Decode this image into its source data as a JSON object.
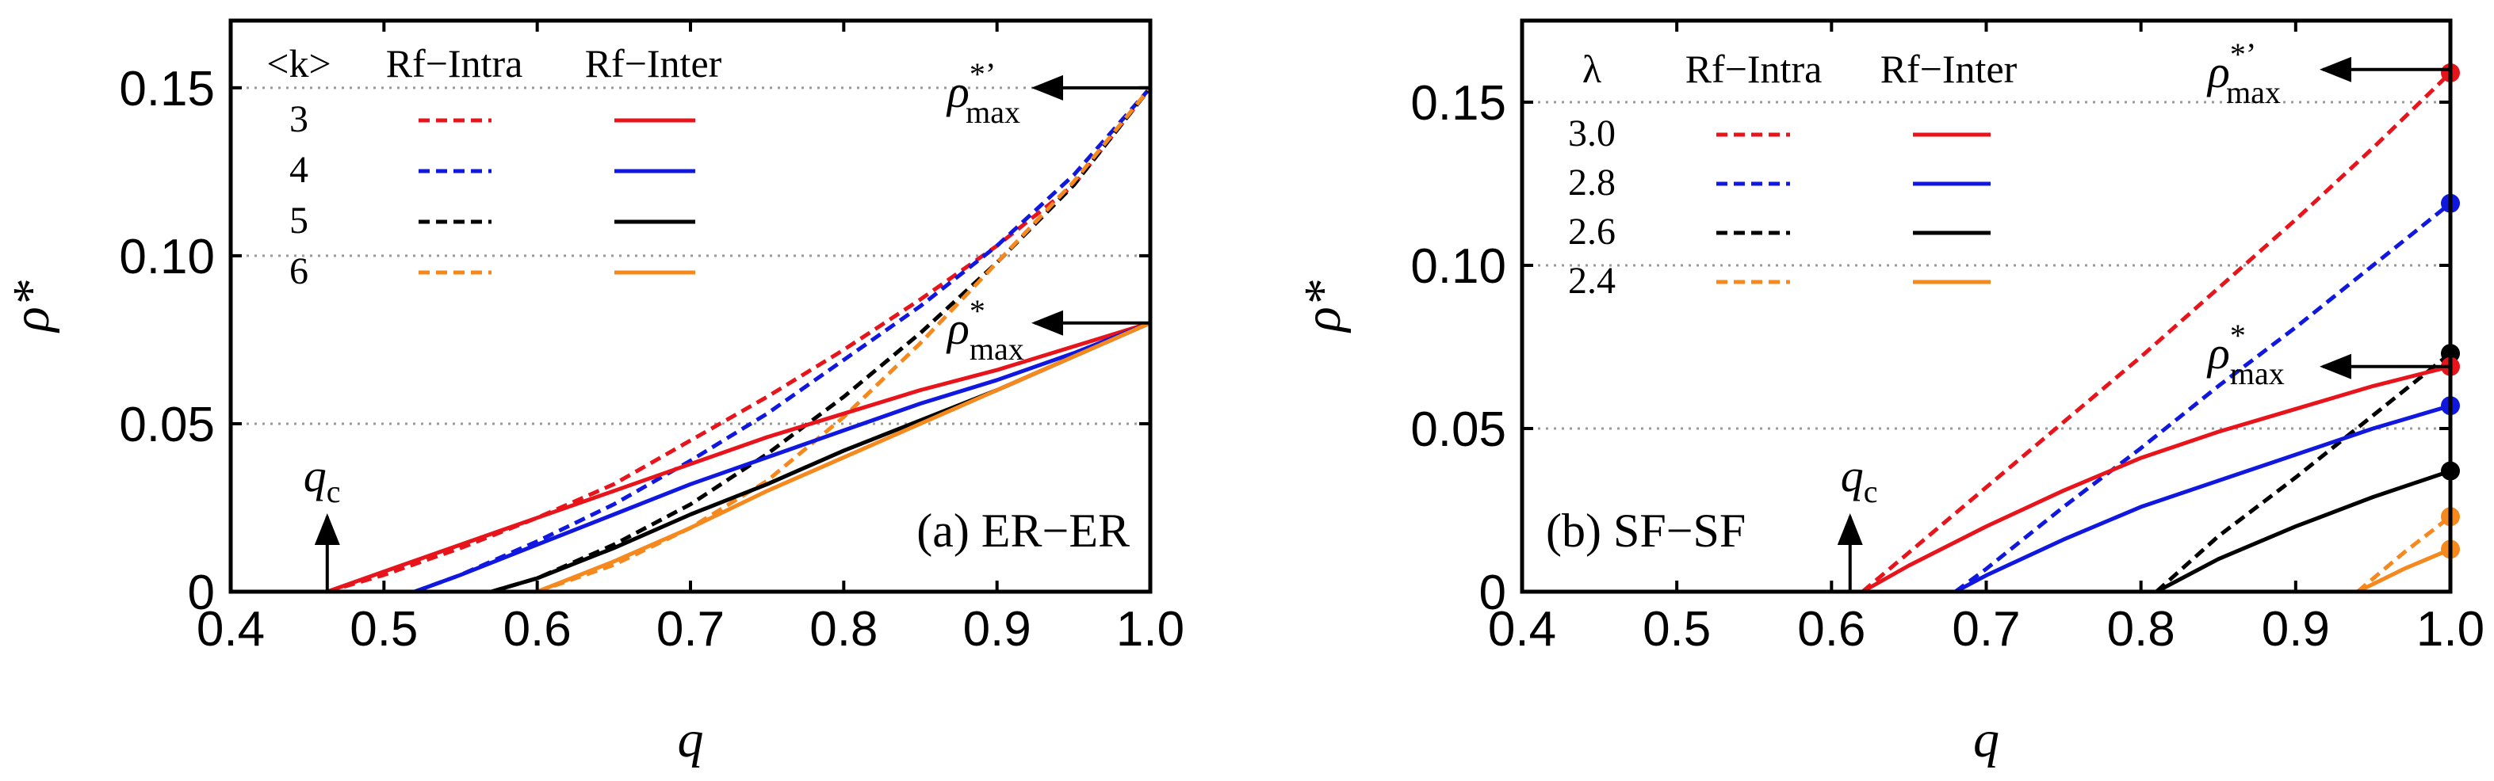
{
  "chart_data": [
    {
      "type": "line",
      "panel_label": "(a) ER−ER",
      "xlabel": "q",
      "ylabel": "ρ*",
      "xlim": [
        0.4,
        1.0
      ],
      "ylim": [
        0,
        0.17
      ],
      "x_ticks": [
        "0.4",
        "0.5",
        "0.6",
        "0.7",
        "0.8",
        "0.9",
        "1.0"
      ],
      "y_ticks": [
        "0",
        "0.05",
        "0.10",
        "0.15"
      ],
      "gridlines_y": [
        0.05,
        0.1,
        0.15
      ],
      "legend": {
        "headers": [
          "<k>",
          "Rf−Intra",
          "Rf−Inter"
        ],
        "rows": [
          {
            "label": "3",
            "color": "#e8141b"
          },
          {
            "label": "4",
            "color": "#1018e0"
          },
          {
            "label": "5",
            "color": "#000000"
          },
          {
            "label": "6",
            "color": "#f5891e"
          }
        ]
      },
      "annotations": {
        "qc": {
          "text": "q",
          "sub": "c",
          "x": 0.463,
          "y_from": 0.0,
          "y_to": 0.028
        },
        "rho_max_prime": {
          "text": "ρ",
          "sup": "*’",
          "sub": "max",
          "y": 0.15
        },
        "rho_max": {
          "text": "ρ",
          "sup": "*",
          "sub": "max",
          "y": 0.08
        }
      },
      "series": [
        {
          "name": "Rf-Intra <k>=3",
          "color": "#e8141b",
          "dash": true,
          "x": [
            0.463,
            0.5,
            0.55,
            0.6,
            0.65,
            0.7,
            0.75,
            0.8,
            0.85,
            0.9,
            0.95,
            1.0
          ],
          "y": [
            0.0,
            0.005,
            0.013,
            0.022,
            0.032,
            0.045,
            0.058,
            0.072,
            0.087,
            0.103,
            0.121,
            0.15
          ]
        },
        {
          "name": "Rf-Intra <k>=4",
          "color": "#1018e0",
          "dash": true,
          "x": [
            0.52,
            0.55,
            0.6,
            0.65,
            0.7,
            0.75,
            0.8,
            0.85,
            0.9,
            0.95,
            1.0
          ],
          "y": [
            0.0,
            0.005,
            0.015,
            0.026,
            0.039,
            0.053,
            0.069,
            0.085,
            0.103,
            0.124,
            0.15
          ]
        },
        {
          "name": "Rf-Intra <k>=5",
          "color": "#000000",
          "dash": true,
          "x": [
            0.57,
            0.6,
            0.65,
            0.7,
            0.75,
            0.8,
            0.85,
            0.9,
            0.95,
            1.0
          ],
          "y": [
            0.0,
            0.004,
            0.014,
            0.026,
            0.041,
            0.058,
            0.077,
            0.098,
            0.121,
            0.15
          ]
        },
        {
          "name": "Rf-Intra <k>=6",
          "color": "#f5891e",
          "dash": true,
          "x": [
            0.6,
            0.65,
            0.7,
            0.75,
            0.8,
            0.85,
            0.9,
            0.95,
            1.0
          ],
          "y": [
            0.0,
            0.008,
            0.019,
            0.033,
            0.052,
            0.074,
            0.098,
            0.122,
            0.15
          ]
        },
        {
          "name": "Rf-Inter <k>=3",
          "color": "#e8141b",
          "dash": false,
          "x": [
            0.463,
            0.5,
            0.55,
            0.6,
            0.65,
            0.7,
            0.75,
            0.8,
            0.85,
            0.9,
            0.95,
            1.0
          ],
          "y": [
            0.0,
            0.006,
            0.014,
            0.022,
            0.03,
            0.038,
            0.046,
            0.053,
            0.06,
            0.066,
            0.073,
            0.08
          ]
        },
        {
          "name": "Rf-Inter <k>=4",
          "color": "#1018e0",
          "dash": false,
          "x": [
            0.52,
            0.55,
            0.6,
            0.65,
            0.7,
            0.75,
            0.8,
            0.85,
            0.9,
            0.95,
            1.0
          ],
          "y": [
            0.0,
            0.005,
            0.014,
            0.023,
            0.032,
            0.04,
            0.048,
            0.056,
            0.063,
            0.071,
            0.08
          ]
        },
        {
          "name": "Rf-Inter <k>=5",
          "color": "#000000",
          "dash": false,
          "x": [
            0.57,
            0.6,
            0.65,
            0.7,
            0.75,
            0.8,
            0.85,
            0.9,
            0.95,
            1.0
          ],
          "y": [
            0.0,
            0.004,
            0.013,
            0.023,
            0.032,
            0.042,
            0.051,
            0.06,
            0.07,
            0.08
          ]
        },
        {
          "name": "Rf-Inter <k>=6",
          "color": "#f5891e",
          "dash": false,
          "x": [
            0.6,
            0.65,
            0.7,
            0.75,
            0.8,
            0.85,
            0.9,
            0.95,
            1.0
          ],
          "y": [
            0.0,
            0.009,
            0.019,
            0.03,
            0.04,
            0.05,
            0.06,
            0.07,
            0.08
          ]
        }
      ]
    },
    {
      "type": "line",
      "panel_label": "(b) SF−SF",
      "xlabel": "q",
      "ylabel": "ρ*",
      "xlim": [
        0.4,
        1.0
      ],
      "ylim": [
        0,
        0.175
      ],
      "x_ticks": [
        "0.4",
        "0.5",
        "0.6",
        "0.7",
        "0.8",
        "0.9",
        "1.0"
      ],
      "y_ticks": [
        "0",
        "0.05",
        "0.10",
        "0.15"
      ],
      "gridlines_y": [
        0.05,
        0.1,
        0.15
      ],
      "legend": {
        "headers": [
          "λ",
          "Rf−Intra",
          "Rf−Inter"
        ],
        "rows": [
          {
            "label": "3.0",
            "color": "#e8141b"
          },
          {
            "label": "2.8",
            "color": "#1018e0"
          },
          {
            "label": "2.6",
            "color": "#000000"
          },
          {
            "label": "2.4",
            "color": "#f5891e"
          }
        ]
      },
      "annotations": {
        "qc": {
          "text": "q",
          "sub": "c",
          "x": 0.612,
          "y_from": 0.0,
          "y_to": 0.022
        },
        "rho_max_prime": {
          "text": "ρ",
          "sup": "*’",
          "sub": "max",
          "y": 0.16
        },
        "rho_max": {
          "text": "ρ",
          "sup": "*",
          "sub": "max",
          "y": 0.069
        }
      },
      "series": [
        {
          "name": "Rf-Intra λ=3.0",
          "color": "#e8141b",
          "dash": true,
          "x": [
            0.62,
            0.65,
            0.7,
            0.75,
            0.8,
            0.85,
            0.9,
            0.95,
            1.0
          ],
          "y": [
            0.0,
            0.012,
            0.032,
            0.052,
            0.072,
            0.093,
            0.114,
            0.136,
            0.159
          ]
        },
        {
          "name": "Rf-Intra λ=2.8",
          "color": "#1018e0",
          "dash": true,
          "x": [
            0.68,
            0.7,
            0.75,
            0.8,
            0.85,
            0.9,
            0.95,
            1.0
          ],
          "y": [
            0.0,
            0.007,
            0.026,
            0.044,
            0.063,
            0.081,
            0.1,
            0.119
          ]
        },
        {
          "name": "Rf-Intra λ=2.6",
          "color": "#000000",
          "dash": true,
          "x": [
            0.81,
            0.85,
            0.9,
            0.95,
            1.0
          ],
          "y": [
            0.0,
            0.017,
            0.035,
            0.054,
            0.073
          ]
        },
        {
          "name": "Rf-Intra λ=2.4",
          "color": "#f5891e",
          "dash": true,
          "x": [
            0.94,
            0.97,
            1.0
          ],
          "y": [
            0.0,
            0.012,
            0.023
          ]
        },
        {
          "name": "Rf-Inter λ=3.0",
          "color": "#e8141b",
          "dash": false,
          "x": [
            0.62,
            0.65,
            0.7,
            0.75,
            0.8,
            0.85,
            0.9,
            0.95,
            1.0
          ],
          "y": [
            0.0,
            0.008,
            0.02,
            0.031,
            0.041,
            0.049,
            0.056,
            0.063,
            0.069
          ]
        },
        {
          "name": "Rf-Inter λ=2.8",
          "color": "#1018e0",
          "dash": false,
          "x": [
            0.68,
            0.7,
            0.75,
            0.8,
            0.85,
            0.9,
            0.95,
            1.0
          ],
          "y": [
            0.0,
            0.005,
            0.016,
            0.026,
            0.034,
            0.042,
            0.05,
            0.057
          ]
        },
        {
          "name": "Rf-Inter λ=2.6",
          "color": "#000000",
          "dash": false,
          "x": [
            0.81,
            0.85,
            0.9,
            0.95,
            1.0
          ],
          "y": [
            0.0,
            0.01,
            0.02,
            0.029,
            0.037
          ]
        },
        {
          "name": "Rf-Inter λ=2.4",
          "color": "#f5891e",
          "dash": false,
          "x": [
            0.94,
            0.97,
            1.0
          ],
          "y": [
            0.0,
            0.007,
            0.013
          ]
        }
      ],
      "endpoint_markers": [
        {
          "x": 1.0,
          "y": 0.159,
          "color": "#e8141b"
        },
        {
          "x": 1.0,
          "y": 0.119,
          "color": "#1018e0"
        },
        {
          "x": 1.0,
          "y": 0.073,
          "color": "#000000"
        },
        {
          "x": 1.0,
          "y": 0.069,
          "color": "#e8141b"
        },
        {
          "x": 1.0,
          "y": 0.057,
          "color": "#1018e0"
        },
        {
          "x": 1.0,
          "y": 0.037,
          "color": "#000000"
        },
        {
          "x": 1.0,
          "y": 0.023,
          "color": "#f5891e"
        },
        {
          "x": 1.0,
          "y": 0.013,
          "color": "#f5891e"
        }
      ]
    }
  ]
}
